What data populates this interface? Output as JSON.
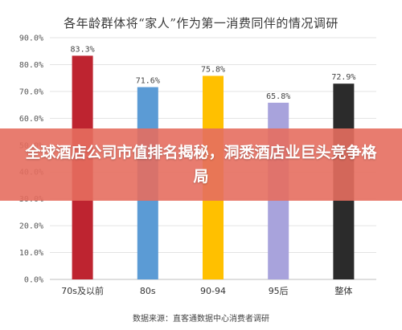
{
  "chart_data": {
    "type": "bar",
    "title": "各年龄群体将“家人”作为第一消费同伴的情况调研",
    "categories": [
      "70s及以前",
      "80s",
      "90-94",
      "95后",
      "整体"
    ],
    "values": [
      83.3,
      71.6,
      75.8,
      65.8,
      72.9
    ],
    "value_labels": [
      "83.3%",
      "71.6%",
      "75.8%",
      "65.8%",
      "72.9%"
    ],
    "colors": [
      "#be2430",
      "#5b9bd5",
      "#ffc000",
      "#a8a3dc",
      "#2b2b2b"
    ],
    "ylim": [
      0,
      90
    ],
    "yticks": [
      0,
      10,
      20,
      30,
      40,
      50,
      60,
      70,
      80,
      90
    ],
    "ytick_labels": [
      "0.0%",
      "10.0%",
      "20.0%",
      "30.0%",
      "40.0%",
      "50.0%",
      "60.0%",
      "70.0%",
      "80.0%",
      "90.0%"
    ],
    "grid": true,
    "xlabel": "",
    "ylabel": ""
  },
  "source": "数据来源：直客通数据中心消费者调研",
  "overlay": {
    "headline": "全球酒店公司市值排名揭秘，洞悉酒店业巨头竞争格局"
  }
}
